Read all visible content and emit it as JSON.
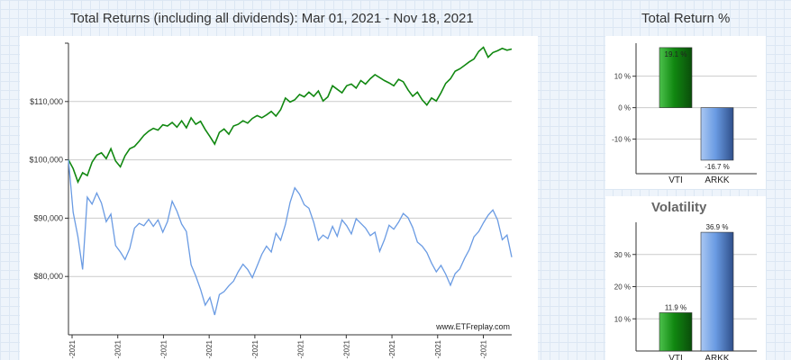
{
  "main_title": "Total Returns (including all dividends): Mar 01, 2021 - Nov 18, 2021",
  "return_title": "Total Return %",
  "volatility_title": "Volatility",
  "watermark": "www.ETFreplay.com",
  "colors": {
    "vti": "#118811",
    "arkk": "#6a9be3",
    "grid": "#cccccc",
    "axis": "#333333"
  },
  "chart_data": [
    {
      "type": "line",
      "title": "Total Returns (including all dividends): Mar 01, 2021 - Nov 18, 2021",
      "x_tick_labels": [
        "-2021",
        "-2021",
        "-2021",
        "-2021",
        "-2021",
        "-2021",
        "-2021",
        "-2021",
        "-2021",
        "-2021"
      ],
      "y_ticks": [
        80000,
        90000,
        100000,
        110000
      ],
      "y_tick_labels": [
        "$80,000",
        "$90,000",
        "$100,000",
        "$110,000"
      ],
      "ylim": [
        70000,
        120000
      ],
      "series": [
        {
          "name": "VTI",
          "color": "#118811",
          "values": [
            100000,
            98500,
            96200,
            97800,
            97300,
            99600,
            100800,
            101200,
            100200,
            101900,
            99800,
            98800,
            100700,
            101900,
            102300,
            103200,
            104200,
            104900,
            105400,
            105100,
            106000,
            105800,
            106400,
            105600,
            106700,
            105500,
            107200,
            106100,
            106600,
            105200,
            104000,
            102700,
            104700,
            105300,
            104400,
            105800,
            106100,
            106700,
            106300,
            107100,
            107600,
            107200,
            107700,
            108300,
            107500,
            108600,
            110600,
            109900,
            110300,
            111200,
            110800,
            111600,
            110900,
            111800,
            110100,
            110800,
            112700,
            112100,
            111500,
            112700,
            113000,
            112300,
            113600,
            113000,
            113900,
            114600,
            114100,
            113600,
            113200,
            112700,
            113800,
            113400,
            112000,
            110900,
            111600,
            110300,
            109400,
            110600,
            110100,
            111500,
            113100,
            113900,
            115200,
            115600,
            116200,
            116800,
            117300,
            118600,
            119300,
            117600,
            118400,
            118700,
            119100,
            118800,
            119000
          ]
        },
        {
          "name": "ARKK",
          "color": "#6a9be3",
          "values": [
            100000,
            91000,
            86800,
            81200,
            93600,
            92400,
            94300,
            92600,
            89400,
            90700,
            85300,
            84200,
            82900,
            84800,
            88300,
            89100,
            88700,
            89800,
            88600,
            89700,
            87600,
            89400,
            92900,
            91200,
            89000,
            87700,
            82000,
            80100,
            77800,
            75100,
            76400,
            73400,
            76900,
            77400,
            78400,
            79200,
            80800,
            82100,
            81200,
            79800,
            81800,
            83800,
            85200,
            84200,
            87400,
            86200,
            88900,
            92700,
            95200,
            94100,
            92300,
            91700,
            89300,
            86200,
            87100,
            86500,
            88600,
            86900,
            89700,
            88700,
            87300,
            89900,
            89100,
            88300,
            87000,
            87600,
            84300,
            86300,
            88800,
            88100,
            89300,
            90800,
            90100,
            88400,
            85900,
            85200,
            84100,
            82300,
            80800,
            81900,
            80400,
            78500,
            80500,
            81300,
            83100,
            84600,
            86800,
            87700,
            89200,
            90500,
            91400,
            89700,
            86300,
            87100,
            83300
          ]
        }
      ]
    },
    {
      "type": "bar",
      "title": "Total Return %",
      "categories": [
        "VTI",
        "ARKK"
      ],
      "values": [
        19.1,
        -16.7
      ],
      "value_labels": [
        "19.1 %",
        "-16.7 %"
      ],
      "y_ticks": [
        -10,
        0,
        10
      ],
      "y_tick_labels": [
        "-10 %",
        "0 %",
        "10 %"
      ],
      "ylim": [
        -21,
        20.5
      ],
      "colors": [
        "#118811",
        "#6a9be3"
      ]
    },
    {
      "type": "bar",
      "title": "Volatility",
      "categories": [
        "VTI",
        "ARKK"
      ],
      "values": [
        11.9,
        36.9
      ],
      "value_labels": [
        "11.9 %",
        "36.9 %"
      ],
      "y_ticks": [
        10,
        20,
        30
      ],
      "y_tick_labels": [
        "10 %",
        "20 %",
        "30 %"
      ],
      "ylim": [
        0,
        40
      ],
      "colors": [
        "#118811",
        "#6a9be3"
      ]
    }
  ]
}
